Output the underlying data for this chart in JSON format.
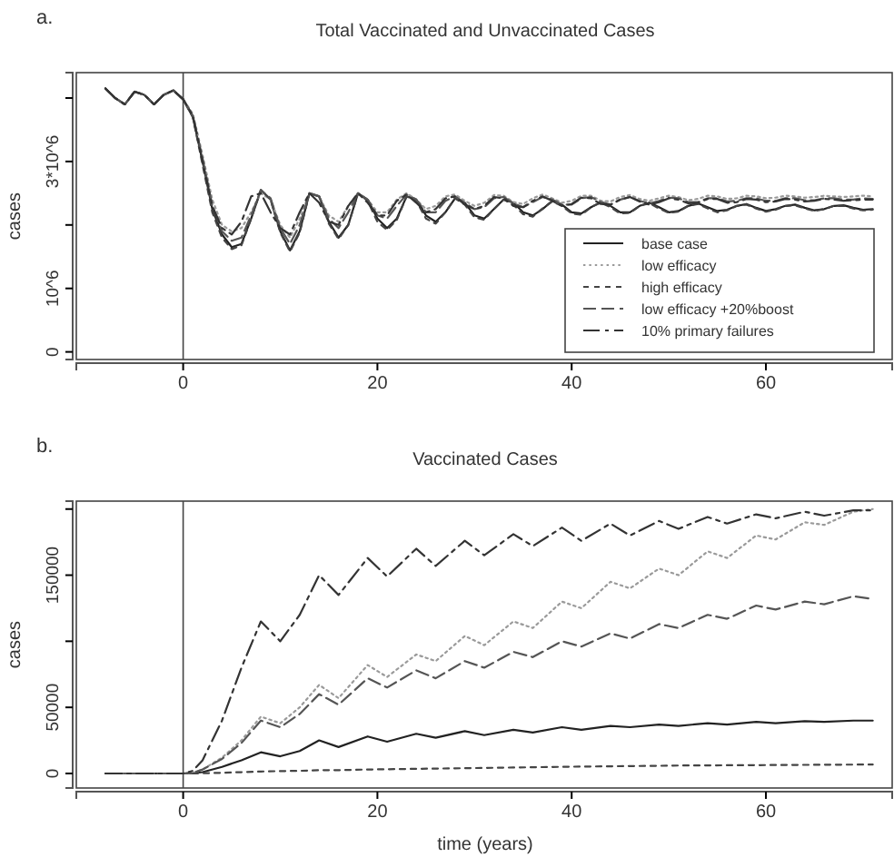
{
  "chart_data": [
    {
      "type": "line",
      "title": "Total Vaccinated and Unvaccinated Cases",
      "ylabel": "cases",
      "annotations": [
        "a."
      ],
      "legend": "bottom right",
      "xlim": [
        -11,
        73
      ],
      "xticks": [
        0,
        20,
        40,
        60
      ],
      "ylim": [
        -120000,
        4400000
      ],
      "yticks": [
        0,
        {
          "value": 1000000,
          "label": "10^6"
        },
        {
          "value": 2000000,
          "label": null
        },
        {
          "value": 3000000,
          "label": "3*10^6"
        },
        {
          "value": 4000000,
          "label": null
        }
      ],
      "ref_lines": [
        {
          "axis": "x",
          "value": 0,
          "label": null
        }
      ],
      "x": [
        -8,
        -7,
        -6,
        -5,
        -4,
        -3,
        -2,
        -1,
        0,
        1,
        2,
        3,
        4,
        5,
        6,
        7,
        8,
        9,
        10,
        11,
        12,
        13,
        14,
        15,
        16,
        17,
        18,
        19,
        20,
        21,
        22,
        23,
        24,
        25,
        26,
        27,
        28,
        29,
        30,
        31,
        32,
        33,
        34,
        35,
        36,
        37,
        38,
        39,
        40,
        41,
        42,
        43,
        44,
        45,
        46,
        47,
        48,
        49,
        50,
        51,
        52,
        53,
        54,
        55,
        56,
        57,
        58,
        59,
        60,
        61,
        62,
        63,
        64,
        65,
        66,
        67,
        68,
        69,
        70,
        71
      ],
      "series": [
        {
          "name": "base case",
          "color": "#222222",
          "line_style": "solid",
          "values": [
            4150000.0,
            4000000.0,
            3900000.0,
            4100000.0,
            4050000.0,
            3900000.0,
            4050000.0,
            4120000.0,
            3980000.0,
            3700000.0,
            3000000.0,
            2250000.0,
            1850000.0,
            1650000.0,
            1700000.0,
            2100000.0,
            2550000.0,
            2400000.0,
            1900000.0,
            1600000.0,
            1900000.0,
            2500000.0,
            2450000.0,
            2050000.0,
            1800000.0,
            2000000.0,
            2500000.0,
            2400000.0,
            2100000.0,
            1950000.0,
            2100000.0,
            2450000.0,
            2400000.0,
            2150000.0,
            2050000.0,
            2200000.0,
            2420000.0,
            2350000.0,
            2150000.0,
            2100000.0,
            2250000.0,
            2400000.0,
            2350000.0,
            2200000.0,
            2150000.0,
            2250000.0,
            2380000.0,
            2320000.0,
            2200000.0,
            2180000.0,
            2280000.0,
            2360000.0,
            2300000.0,
            2200000.0,
            2200000.0,
            2300000.0,
            2350000.0,
            2280000.0,
            2200000.0,
            2220000.0,
            2300000.0,
            2340000.0,
            2280000.0,
            2220000.0,
            2240000.0,
            2300000.0,
            2330000.0,
            2270000.0,
            2220000.0,
            2250000.0,
            2300000.0,
            2320000.0,
            2270000.0,
            2230000.0,
            2250000.0,
            2300000.0,
            2310000.0,
            2270000.0,
            2240000.0,
            2250000.0
          ]
        },
        {
          "name": "low efficacy",
          "color": "#9a9a9a",
          "line_style": "dotted",
          "values": [
            4150000.0,
            4000000.0,
            3900000.0,
            4100000.0,
            4050000.0,
            3900000.0,
            4050000.0,
            4120000.0,
            3980000.0,
            3750000.0,
            3100000.0,
            2400000.0,
            2000000.0,
            1900000.0,
            1950000.0,
            2200000.0,
            2500000.0,
            2400000.0,
            2000000.0,
            1800000.0,
            2100000.0,
            2500000.0,
            2450000.0,
            2150000.0,
            2050000.0,
            2300000.0,
            2500000.0,
            2400000.0,
            2200000.0,
            2200000.0,
            2400000.0,
            2500000.0,
            2400000.0,
            2250000.0,
            2300000.0,
            2450000.0,
            2480000.0,
            2380000.0,
            2300000.0,
            2350000.0,
            2470000.0,
            2460000.0,
            2360000.0,
            2330000.0,
            2420000.0,
            2480000.0,
            2420000.0,
            2350000.0,
            2380000.0,
            2460000.0,
            2460000.0,
            2380000.0,
            2370000.0,
            2440000.0,
            2470000.0,
            2410000.0,
            2380000.0,
            2420000.0,
            2460000.0,
            2440000.0,
            2390000.0,
            2410000.0,
            2460000.0,
            2450000.0,
            2410000.0,
            2420000.0,
            2460000.0,
            2450000.0,
            2420000.0,
            2430000.0,
            2460000.0,
            2450000.0,
            2430000.0,
            2440000.0,
            2460000.0,
            2450000.0,
            2440000.0,
            2450000.0,
            2460000.0,
            2450000.0
          ]
        },
        {
          "name": "high efficacy",
          "color": "#444444",
          "line_style": "dashed",
          "values": [
            4150000.0,
            4000000.0,
            3900000.0,
            4100000.0,
            4050000.0,
            3900000.0,
            4050000.0,
            4120000.0,
            3980000.0,
            3700000.0,
            2950000.0,
            2200000.0,
            1800000.0,
            1620000.0,
            1680000.0,
            2100000.0,
            2550000.0,
            2400000.0,
            1880000.0,
            1580000.0,
            1880000.0,
            2500000.0,
            2450000.0,
            2020000.0,
            1780000.0,
            2000000.0,
            2500000.0,
            2380000.0,
            2050000.0,
            1920000.0,
            2080000.0,
            2450000.0,
            2380000.0,
            2100000.0,
            2020000.0,
            2200000.0,
            2420000.0,
            2320000.0,
            2120000.0,
            2080000.0,
            2250000.0,
            2400000.0,
            2320000.0,
            2170000.0,
            2130000.0,
            2260000.0,
            2370000.0,
            2300000.0,
            2180000.0,
            2160000.0,
            2280000.0,
            2350000.0,
            2280000.0,
            2180000.0,
            2190000.0,
            2300000.0,
            2340000.0,
            2260000.0,
            2190000.0,
            2210000.0,
            2300000.0,
            2330000.0,
            2260000.0,
            2200000.0,
            2230000.0,
            2300000.0,
            2320000.0,
            2260000.0,
            2210000.0,
            2240000.0,
            2300000.0,
            2310000.0,
            2260000.0,
            2220000.0,
            2250000.0,
            2300000.0,
            2300000.0,
            2260000.0,
            2230000.0,
            2240000.0
          ]
        },
        {
          "name": "low efficacy +20%boost",
          "color": "#555555",
          "line_style": "longdash",
          "values": [
            4150000.0,
            4000000.0,
            3900000.0,
            4100000.0,
            4050000.0,
            3900000.0,
            4050000.0,
            4120000.0,
            3980000.0,
            3720000.0,
            3050000.0,
            2300000.0,
            1900000.0,
            1750000.0,
            1800000.0,
            2150000.0,
            2550000.0,
            2420000.0,
            1950000.0,
            1700000.0,
            2000000.0,
            2500000.0,
            2450000.0,
            2100000.0,
            1950000.0,
            2200000.0,
            2500000.0,
            2400000.0,
            2150000.0,
            2100000.0,
            2300000.0,
            2480000.0,
            2400000.0,
            2200000.0,
            2200000.0,
            2380000.0,
            2450000.0,
            2350000.0,
            2250000.0,
            2280000.0,
            2420000.0,
            2440000.0,
            2340000.0,
            2280000.0,
            2360000.0,
            2440000.0,
            2400000.0,
            2320000.0,
            2320000.0,
            2420000.0,
            2440000.0,
            2360000.0,
            2320000.0,
            2400000.0,
            2440000.0,
            2380000.0,
            2340000.0,
            2380000.0,
            2430000.0,
            2420000.0,
            2360000.0,
            2360000.0,
            2420000.0,
            2420000.0,
            2370000.0,
            2380000.0,
            2420000.0,
            2420000.0,
            2380000.0,
            2380000.0,
            2420000.0,
            2420000.0,
            2390000.0,
            2390000.0,
            2420000.0,
            2420000.0,
            2400000.0,
            2400000.0,
            2420000.0,
            2410000.0
          ]
        },
        {
          "name": "10% primary failures",
          "color": "#333333",
          "line_style": "dashdot",
          "values": [
            4150000.0,
            4000000.0,
            3900000.0,
            4100000.0,
            4050000.0,
            3900000.0,
            4050000.0,
            4120000.0,
            3980000.0,
            3720000.0,
            3000000.0,
            2300000.0,
            1950000.0,
            1850000.0,
            2050000.0,
            2450000.0,
            2500000.0,
            2200000.0,
            1950000.0,
            1850000.0,
            2200000.0,
            2500000.0,
            2350000.0,
            2050000.0,
            2000000.0,
            2300000.0,
            2500000.0,
            2350000.0,
            2150000.0,
            2150000.0,
            2380000.0,
            2480000.0,
            2350000.0,
            2200000.0,
            2250000.0,
            2420000.0,
            2450000.0,
            2320000.0,
            2250000.0,
            2300000.0,
            2440000.0,
            2420000.0,
            2300000.0,
            2280000.0,
            2380000.0,
            2450000.0,
            2380000.0,
            2300000.0,
            2330000.0,
            2430000.0,
            2420000.0,
            2330000.0,
            2320000.0,
            2400000.0,
            2440000.0,
            2370000.0,
            2320000.0,
            2360000.0,
            2420000.0,
            2400000.0,
            2340000.0,
            2350000.0,
            2410000.0,
            2410000.0,
            2350000.0,
            2360000.0,
            2410000.0,
            2400000.0,
            2360000.0,
            2370000.0,
            2410000.0,
            2400000.0,
            2370000.0,
            2380000.0,
            2410000.0,
            2400000.0,
            2380000.0,
            2390000.0,
            2400000.0,
            2400000.0
          ]
        }
      ]
    },
    {
      "type": "line",
      "title": "Vaccinated Cases",
      "xlabel": "time (years)",
      "ylabel": "cases",
      "annotations": [
        "b."
      ],
      "xlim": [
        -11,
        73
      ],
      "xticks": [
        0,
        20,
        40,
        60
      ],
      "ylim": [
        -11000,
        206000
      ],
      "yticks": [
        0,
        50000,
        {
          "value": 100000,
          "label": null
        },
        150000,
        {
          "value": 200000,
          "label": null
        }
      ],
      "ref_lines": [
        {
          "axis": "x",
          "value": 0,
          "label": null
        }
      ],
      "x": [
        -8,
        0,
        1,
        2,
        4,
        6,
        8,
        10,
        12,
        14,
        16,
        19,
        21,
        24,
        26,
        29,
        31,
        34,
        36,
        39,
        41,
        44,
        46,
        49,
        51,
        54,
        56,
        59,
        61,
        64,
        66,
        69,
        71
      ],
      "series": [
        {
          "color": "#222222",
          "line_style": "solid",
          "values": [
            0,
            0,
            200,
            1000,
            5000,
            10000,
            16000,
            13000,
            17000,
            25000,
            20000,
            28000,
            24000,
            30000,
            27000,
            32000,
            29000,
            33000,
            31000,
            35000,
            33000,
            36000,
            35000,
            37000,
            36000,
            38000,
            37000,
            39000,
            38000,
            39500,
            39000,
            40000,
            40000
          ]
        },
        {
          "color": "#9a9a9a",
          "line_style": "dotted",
          "values": [
            0,
            0,
            500,
            3000,
            12000,
            25000,
            43000,
            38000,
            50000,
            67000,
            57000,
            82000,
            73000,
            90000,
            85000,
            104000,
            97000,
            115000,
            110000,
            130000,
            125000,
            145000,
            140000,
            155000,
            150000,
            168000,
            163000,
            180000,
            177000,
            190000,
            188000,
            198000,
            200000
          ]
        },
        {
          "color": "#444444",
          "line_style": "dashed",
          "values": [
            0,
            0,
            0,
            200,
            500,
            1000,
            1500,
            1800,
            2000,
            2500,
            2500,
            3000,
            3200,
            3500,
            3700,
            4000,
            4200,
            4500,
            4700,
            5000,
            5200,
            5400,
            5600,
            5800,
            6000,
            6100,
            6200,
            6300,
            6400,
            6500,
            6600,
            6700,
            6700
          ]
        },
        {
          "color": "#555555",
          "line_style": "longdash",
          "values": [
            0,
            0,
            500,
            3000,
            11000,
            23000,
            40000,
            35000,
            45000,
            60000,
            52000,
            72000,
            65000,
            78000,
            72000,
            85000,
            80000,
            92000,
            88000,
            100000,
            96000,
            106000,
            102000,
            113000,
            110000,
            120000,
            117000,
            127000,
            124000,
            130000,
            128000,
            134000,
            132000
          ]
        },
        {
          "color": "#333333",
          "line_style": "dashdot",
          "values": [
            0,
            0,
            2000,
            10000,
            40000,
            80000,
            115000,
            100000,
            120000,
            150000,
            135000,
            163000,
            149000,
            170000,
            157000,
            176000,
            165000,
            181000,
            172000,
            186000,
            176000,
            189000,
            180000,
            191000,
            185000,
            194000,
            189000,
            196000,
            193000,
            198000,
            195000,
            199000,
            199000
          ]
        }
      ]
    }
  ]
}
